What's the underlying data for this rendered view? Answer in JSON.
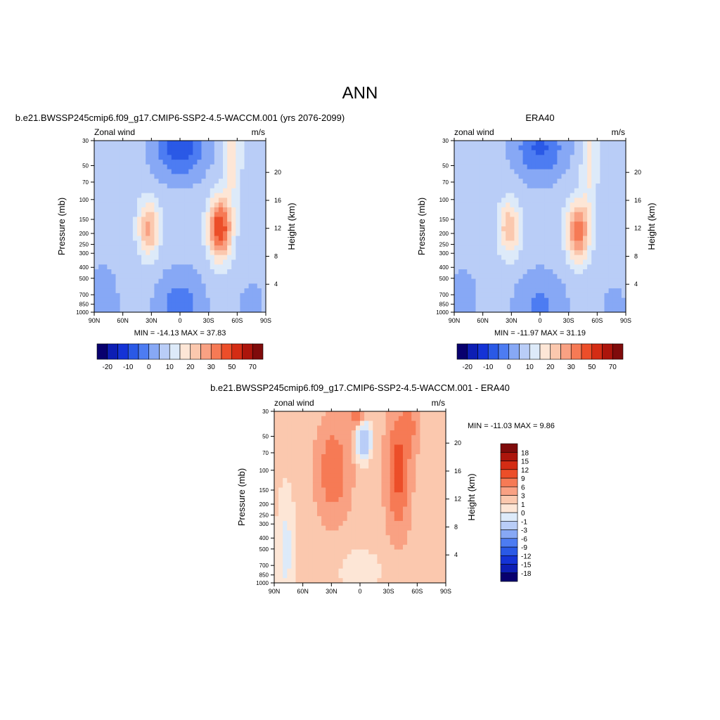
{
  "page": {
    "title": "ANN"
  },
  "palettes": {
    "main": [
      "#08006e",
      "#0d1eb4",
      "#1433d6",
      "#2a59e6",
      "#4d7cf2",
      "#87a8f5",
      "#b9cdf7",
      "#ddeaf9",
      "#fde6d6",
      "#fbc8ae",
      "#f9a183",
      "#f67a55",
      "#ec4e29",
      "#d42c14",
      "#ac150c",
      "#7f0b0b"
    ],
    "diff": [
      "#08006e",
      "#0d1eb4",
      "#1433d6",
      "#2a59e6",
      "#4d7cf2",
      "#87a8f5",
      "#b9cdf7",
      "#ddeaf9",
      "#fde6d6",
      "#fbc8ae",
      "#f9a183",
      "#f67a55",
      "#ec4e29",
      "#d42c14",
      "#ac150c",
      "#7f0b0b"
    ]
  },
  "chart_data": [
    {
      "type": "heatmap",
      "id": "model",
      "title": "b.e21.BWSSP245cmip6.f09_g17.CMIP6-SSP2-4.5-WACCM.001 (yrs 2076-2099)",
      "left_label": "Zonal wind",
      "right_label": "m/s",
      "ylabel": "Pressure (mb)",
      "ylabel_right": "Height (km)",
      "x_ticks": [
        "90N",
        "60N",
        "30N",
        "0",
        "30S",
        "60S",
        "90S"
      ],
      "y_ticks": [
        "30",
        "50",
        "70",
        "100",
        "150",
        "200",
        "250",
        "300",
        "400",
        "500",
        "700",
        "850",
        "1000"
      ],
      "y_ticks_right": [
        "20",
        "16",
        "12",
        "8",
        "4"
      ],
      "stats": "MIN = -14.13  MAX =  37.83",
      "colorbar_labels": [
        "-20",
        "-10",
        "0",
        "10",
        "20",
        "30",
        "50",
        "70"
      ],
      "levels": [
        -25,
        -20,
        -15,
        -10,
        -5,
        0,
        5,
        10,
        15,
        20,
        25,
        30,
        40,
        50,
        60,
        70
      ],
      "min": -14.13,
      "max": 37.83
    },
    {
      "type": "heatmap",
      "id": "obs",
      "title": "ERA40",
      "left_label": "zonal wind",
      "right_label": "m/s",
      "ylabel": "Pressure (mb)",
      "ylabel_right": "Height (km)",
      "x_ticks": [
        "90N",
        "60N",
        "30N",
        "0",
        "30S",
        "60S",
        "90S"
      ],
      "y_ticks": [
        "30",
        "50",
        "70",
        "100",
        "150",
        "200",
        "250",
        "300",
        "400",
        "500",
        "700",
        "850",
        "1000"
      ],
      "y_ticks_right": [
        "20",
        "16",
        "12",
        "8",
        "4"
      ],
      "stats": "MIN = -11.97  MAX =  31.19",
      "colorbar_labels": [
        "-20",
        "-10",
        "0",
        "10",
        "20",
        "30",
        "50",
        "70"
      ],
      "levels": [
        -25,
        -20,
        -15,
        -10,
        -5,
        0,
        5,
        10,
        15,
        20,
        25,
        30,
        40,
        50,
        60,
        70
      ],
      "min": -11.97,
      "max": 31.19
    },
    {
      "type": "heatmap",
      "id": "diff",
      "title": "b.e21.BWSSP245cmip6.f09_g17.CMIP6-SSP2-4.5-WACCM.001 - ERA40",
      "left_label": "zonal wind",
      "right_label": "m/s",
      "ylabel": "Pressure (mb)",
      "ylabel_right": "Height (km)",
      "x_ticks": [
        "90N",
        "60N",
        "30N",
        "0",
        "30S",
        "60S",
        "90S"
      ],
      "y_ticks": [
        "30",
        "50",
        "70",
        "100",
        "150",
        "200",
        "250",
        "300",
        "400",
        "500",
        "700",
        "850",
        "1000"
      ],
      "y_ticks_right": [
        "20",
        "16",
        "12",
        "8",
        "4"
      ],
      "stats": "MIN = -11.03  MAX =   9.86",
      "colorbar_labels": [
        "18",
        "15",
        "12",
        "9",
        "6",
        "3",
        "1",
        "0",
        "-1",
        "-3",
        "-6",
        "-9",
        "-12",
        "-15",
        "-18"
      ],
      "levels": [
        -21,
        -18,
        -15,
        -12,
        -9,
        -6,
        -3,
        -1,
        0,
        1,
        3,
        6,
        9,
        12,
        15,
        18
      ],
      "min": -11.03,
      "max": 9.86
    }
  ]
}
